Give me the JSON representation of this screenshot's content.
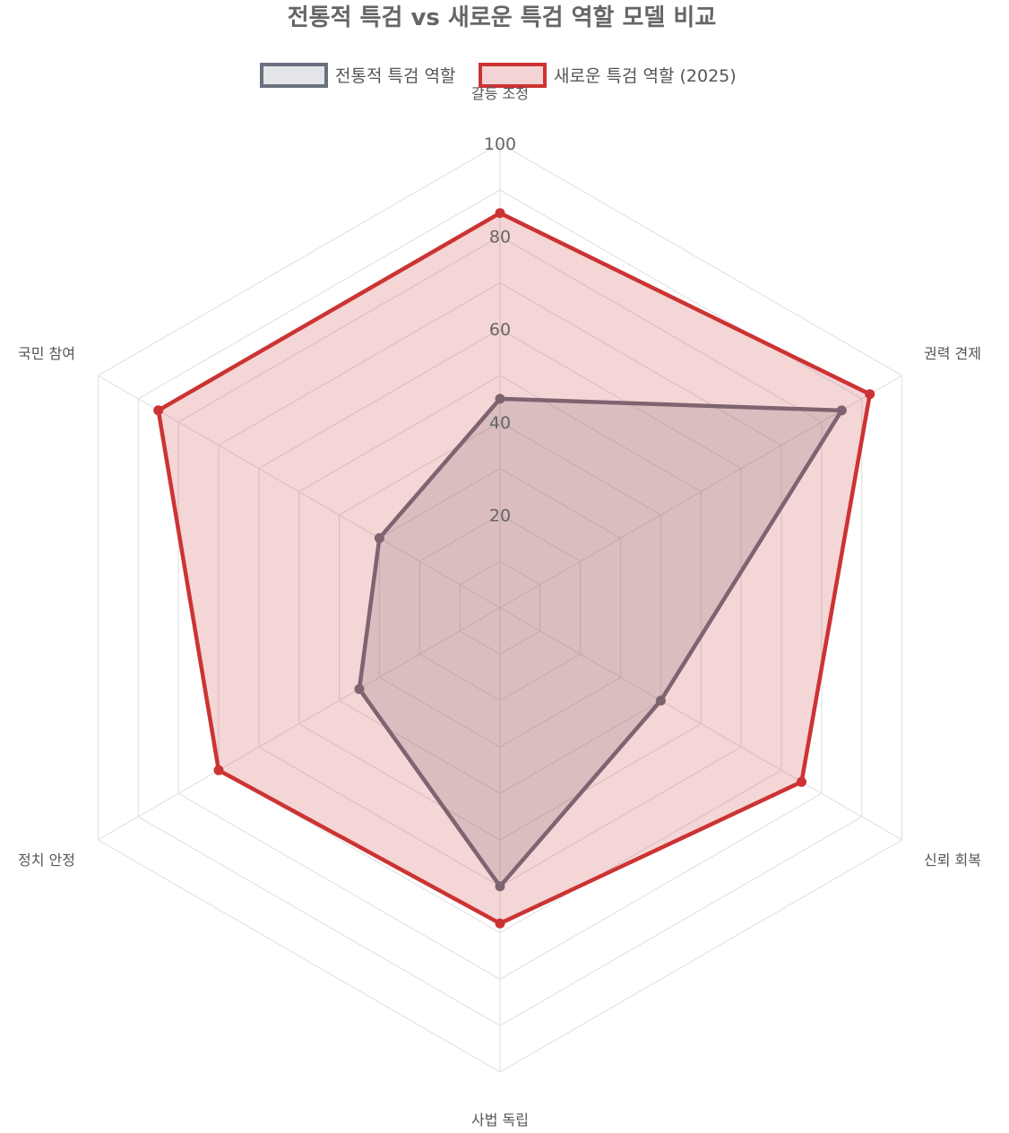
{
  "chart_data": {
    "type": "radar",
    "title": "전통적 특검 vs 새로운 특검 역할 모델 비교",
    "categories": [
      "갈등 조정",
      "권력 견제",
      "신뢰 회복",
      "사법 독립",
      "정치 안정",
      "국민 참여"
    ],
    "r_ticks": [
      "20",
      "40",
      "60",
      "80",
      "100"
    ],
    "r_range": [
      0,
      100
    ],
    "legend_position": "top",
    "series": [
      {
        "name": "전통적 특검 역할",
        "values": [
          45,
          85,
          40,
          60,
          35,
          30
        ],
        "color": "#6b7080",
        "fill": "rgba(107,112,128,0.22)"
      },
      {
        "name": "새로운 특검 역할 (2025)",
        "values": [
          85,
          92,
          75,
          68,
          70,
          85
        ],
        "color": "#cc3333",
        "fill": "rgba(204,51,51,0.2)"
      }
    ]
  }
}
